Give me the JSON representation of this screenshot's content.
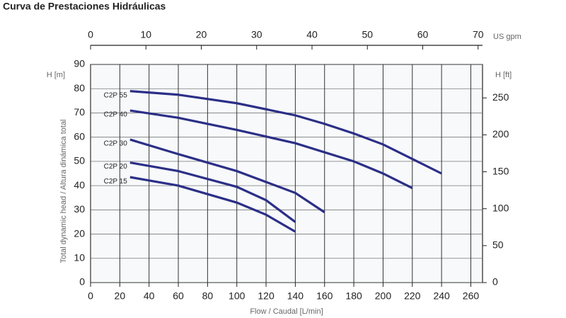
{
  "chart_data": {
    "type": "line",
    "title": "Curva de Prestaciones Hidráulicas",
    "xlabel": "Flow / Caudal [L/min]",
    "ylabel": "Total dynamic head / Altura dinámica total",
    "ylabel_unit": "H [m]",
    "y2label": "H [ft]",
    "x2label": "US gpm",
    "xlim": [
      0,
      268
    ],
    "xticks": [
      0,
      20,
      40,
      60,
      80,
      100,
      120,
      140,
      160,
      180,
      200,
      220,
      240,
      260
    ],
    "x2lim": [
      0,
      70.8
    ],
    "x2ticks": [
      0,
      10,
      20,
      30,
      40,
      50,
      60,
      70
    ],
    "ylim": [
      0,
      90
    ],
    "yticks": [
      0,
      10,
      20,
      30,
      40,
      50,
      60,
      70,
      80,
      90
    ],
    "y2lim": [
      0,
      295.3
    ],
    "y2ticks": [
      0,
      50,
      100,
      150,
      200,
      250
    ],
    "grid": true,
    "series": [
      {
        "name": "C2P 55",
        "color": "#2b2f86",
        "x": [
          27,
          60,
          100,
          140,
          160,
          180,
          200,
          220,
          240
        ],
        "values": [
          79,
          77.5,
          74,
          69,
          65.5,
          61.5,
          57,
          51,
          45
        ]
      },
      {
        "name": "C2P 40",
        "color": "#2b2f86",
        "x": [
          27,
          60,
          100,
          140,
          180,
          200,
          220
        ],
        "values": [
          71,
          68,
          63,
          57.5,
          50,
          45,
          39
        ]
      },
      {
        "name": "C2P 30",
        "color": "#2b2f86",
        "x": [
          27,
          60,
          100,
          140,
          160
        ],
        "values": [
          59,
          53,
          46,
          37,
          29
        ]
      },
      {
        "name": "C2P 20",
        "color": "#2b2f86",
        "x": [
          27,
          60,
          100,
          120,
          140
        ],
        "values": [
          49.5,
          46,
          39.5,
          34,
          25
        ]
      },
      {
        "name": "C2P 15",
        "color": "#2b2f86",
        "x": [
          27,
          60,
          100,
          120,
          140
        ],
        "values": [
          43.5,
          40,
          33,
          28,
          21
        ]
      }
    ]
  }
}
